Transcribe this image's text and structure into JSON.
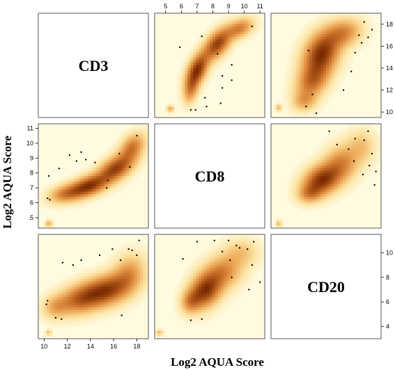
{
  "chart_data": {
    "type": "scatter",
    "subtype": "scatterplot-matrix-density",
    "xlabel": "Log2 AQUA Score",
    "ylabel": "Log2 AQUA Score",
    "variables": [
      {
        "name": "CD3",
        "range": [
          9.5,
          19
        ],
        "ticks": [
          10,
          12,
          14,
          16,
          18
        ]
      },
      {
        "name": "CD8",
        "range": [
          4.3,
          11.3
        ],
        "ticks": [
          5,
          6,
          7,
          8,
          9,
          10,
          11
        ]
      },
      {
        "name": "CD20",
        "range": [
          3,
          11.5
        ],
        "ticks": [
          4,
          6,
          8,
          10
        ]
      }
    ],
    "color_low": "#fffbe0",
    "color_high": "#7a2a00",
    "panels": [
      {
        "row": 0,
        "col": 1,
        "x_var": "CD8",
        "y_var": "CD3",
        "clusters": [
          {
            "x": 7.0,
            "y": 13.8,
            "sx": 0.45,
            "sy": 1.0,
            "rho": 0.5,
            "w": 1.0
          },
          {
            "x": 8.3,
            "y": 16.2,
            "sx": 0.55,
            "sy": 0.9,
            "rho": 0.5,
            "w": 0.9
          },
          {
            "x": 9.7,
            "y": 17.6,
            "sx": 0.55,
            "sy": 0.6,
            "rho": 0.4,
            "w": 0.55
          },
          {
            "x": 6.6,
            "y": 12.0,
            "sx": 0.3,
            "sy": 0.8,
            "rho": 0.3,
            "w": 0.45
          },
          {
            "x": 5.3,
            "y": 10.3,
            "sx": 0.15,
            "sy": 0.2,
            "rho": 0.0,
            "w": 0.35
          }
        ],
        "points": [
          [
            5.9,
            15.9
          ],
          [
            7.3,
            16.9
          ],
          [
            8.3,
            15.3
          ],
          [
            8.6,
            13.3
          ],
          [
            9.2,
            14.3
          ],
          [
            8.6,
            12.2
          ],
          [
            7.6,
            10.5
          ],
          [
            8.5,
            10.8
          ],
          [
            6.6,
            10.2
          ],
          [
            6.9,
            10.2
          ],
          [
            7.5,
            11.3
          ],
          [
            9.2,
            12.9
          ],
          [
            10.5,
            17.8
          ]
        ]
      },
      {
        "row": 0,
        "col": 2,
        "x_var": "CD20",
        "y_var": "CD3",
        "clusters": [
          {
            "x": 6.9,
            "y": 15.3,
            "sx": 0.9,
            "sy": 1.3,
            "rho": 0.3,
            "w": 1.0
          },
          {
            "x": 6.2,
            "y": 12.8,
            "sx": 0.8,
            "sy": 1.0,
            "rho": 0.3,
            "w": 0.6
          },
          {
            "x": 8.6,
            "y": 17.2,
            "sx": 0.9,
            "sy": 0.8,
            "rho": 0.2,
            "w": 0.5
          },
          {
            "x": 5.6,
            "y": 11.0,
            "sx": 0.6,
            "sy": 0.6,
            "rho": 0.1,
            "w": 0.35
          },
          {
            "x": 3.6,
            "y": 10.4,
            "sx": 0.15,
            "sy": 0.2,
            "rho": 0.0,
            "w": 0.3
          }
        ],
        "points": [
          [
            5.9,
            15.6
          ],
          [
            6.2,
            11.6
          ],
          [
            5.7,
            10.5
          ],
          [
            9.5,
            15.4
          ],
          [
            10.0,
            16.3
          ],
          [
            10.8,
            17.5
          ],
          [
            9.8,
            17.0
          ],
          [
            10.5,
            16.8
          ],
          [
            9.2,
            13.7
          ],
          [
            10.2,
            18.2
          ],
          [
            8.6,
            12.0
          ],
          [
            6.5,
            9.9
          ]
        ]
      },
      {
        "row": 1,
        "col": 0,
        "x_var": "CD3",
        "y_var": "CD8",
        "clusters": [
          {
            "x": 13.8,
            "y": 7.1,
            "sx": 1.1,
            "sy": 0.5,
            "rho": 0.5,
            "w": 1.0
          },
          {
            "x": 16.2,
            "y": 8.3,
            "sx": 1.0,
            "sy": 0.6,
            "rho": 0.5,
            "w": 0.9
          },
          {
            "x": 17.6,
            "y": 9.7,
            "sx": 0.7,
            "sy": 0.6,
            "rho": 0.4,
            "w": 0.6
          },
          {
            "x": 11.8,
            "y": 6.6,
            "sx": 0.9,
            "sy": 0.4,
            "rho": 0.3,
            "w": 0.5
          },
          {
            "x": 10.4,
            "y": 4.6,
            "sx": 0.2,
            "sy": 0.15,
            "rho": 0.0,
            "w": 0.35
          }
        ],
        "points": [
          [
            10.3,
            6.3
          ],
          [
            10.4,
            7.8
          ],
          [
            12.2,
            9.2
          ],
          [
            13.2,
            9.4
          ],
          [
            13.6,
            8.9
          ],
          [
            12.8,
            8.8
          ],
          [
            14.4,
            8.7
          ],
          [
            15.4,
            7.0
          ],
          [
            16.5,
            9.3
          ],
          [
            17.4,
            8.4
          ],
          [
            18.0,
            10.5
          ],
          [
            11.3,
            8.3
          ],
          [
            15.5,
            7.5
          ],
          [
            10.5,
            6.2
          ]
        ]
      },
      {
        "row": 1,
        "col": 2,
        "x_var": "CD20",
        "y_var": "CD8",
        "clusters": [
          {
            "x": 6.9,
            "y": 7.5,
            "sx": 0.9,
            "sy": 0.65,
            "rho": 0.25,
            "w": 1.0
          },
          {
            "x": 8.4,
            "y": 8.6,
            "sx": 0.9,
            "sy": 0.8,
            "rho": 0.2,
            "w": 0.55
          },
          {
            "x": 6.0,
            "y": 6.6,
            "sx": 0.6,
            "sy": 0.4,
            "rho": 0.1,
            "w": 0.45
          },
          {
            "x": 10.0,
            "y": 9.8,
            "sx": 0.7,
            "sy": 0.7,
            "rho": 0.0,
            "w": 0.25
          },
          {
            "x": 3.6,
            "y": 4.6,
            "sx": 0.15,
            "sy": 0.15,
            "rho": 0.0,
            "w": 0.3
          }
        ],
        "points": [
          [
            9.0,
            9.6
          ],
          [
            9.5,
            10.3
          ],
          [
            10.2,
            10.2
          ],
          [
            10.8,
            9.3
          ],
          [
            10.6,
            8.5
          ],
          [
            10.1,
            7.9
          ],
          [
            11.0,
            7.2
          ],
          [
            9.4,
            8.8
          ],
          [
            8.1,
            9.9
          ],
          [
            7.5,
            10.8
          ],
          [
            11.1,
            8.1
          ],
          [
            10.5,
            10.8
          ]
        ]
      },
      {
        "row": 2,
        "col": 0,
        "x_var": "CD3",
        "y_var": "CD20",
        "clusters": [
          {
            "x": 15.3,
            "y": 6.9,
            "sx": 1.4,
            "sy": 0.85,
            "rho": 0.35,
            "w": 1.0
          },
          {
            "x": 13.0,
            "y": 6.2,
            "sx": 1.2,
            "sy": 0.8,
            "rho": 0.3,
            "w": 0.65
          },
          {
            "x": 17.3,
            "y": 8.3,
            "sx": 0.9,
            "sy": 1.0,
            "rho": 0.2,
            "w": 0.45
          },
          {
            "x": 11.0,
            "y": 5.6,
            "sx": 0.7,
            "sy": 0.6,
            "rho": 0.1,
            "w": 0.35
          },
          {
            "x": 10.4,
            "y": 3.5,
            "sx": 0.15,
            "sy": 0.15,
            "rho": 0.0,
            "w": 0.3
          }
        ],
        "points": [
          [
            10.2,
            5.8
          ],
          [
            10.3,
            6.1
          ],
          [
            11.0,
            4.7
          ],
          [
            11.5,
            4.6
          ],
          [
            13.2,
            9.4
          ],
          [
            14.8,
            9.8
          ],
          [
            15.9,
            10.3
          ],
          [
            16.6,
            9.4
          ],
          [
            17.3,
            10.3
          ],
          [
            17.6,
            10.2
          ],
          [
            18.0,
            9.8
          ],
          [
            12.5,
            9.0
          ],
          [
            16.7,
            4.9
          ],
          [
            11.6,
            9.2
          ],
          [
            18.2,
            11.0
          ]
        ]
      },
      {
        "row": 2,
        "col": 1,
        "x_var": "CD8",
        "y_var": "CD20",
        "clusters": [
          {
            "x": 7.5,
            "y": 6.9,
            "sx": 0.65,
            "sy": 0.9,
            "rho": 0.25,
            "w": 1.0
          },
          {
            "x": 8.6,
            "y": 8.4,
            "sx": 0.8,
            "sy": 0.9,
            "rho": 0.2,
            "w": 0.55
          },
          {
            "x": 6.6,
            "y": 6.0,
            "sx": 0.4,
            "sy": 0.6,
            "rho": 0.1,
            "w": 0.45
          },
          {
            "x": 9.8,
            "y": 10.0,
            "sx": 0.7,
            "sy": 0.7,
            "rho": 0.0,
            "w": 0.25
          },
          {
            "x": 4.6,
            "y": 3.5,
            "sx": 0.15,
            "sy": 0.15,
            "rho": 0.0,
            "w": 0.3
          }
        ],
        "points": [
          [
            7.0,
            10.9
          ],
          [
            8.1,
            11.0
          ],
          [
            9.1,
            9.4
          ],
          [
            9.7,
            10.4
          ],
          [
            10.2,
            10.3
          ],
          [
            9.5,
            10.6
          ],
          [
            10.5,
            9.0
          ],
          [
            11.0,
            7.6
          ],
          [
            10.3,
            7.0
          ],
          [
            9.2,
            8.0
          ],
          [
            10.6,
            10.9
          ],
          [
            8.6,
            10.1
          ],
          [
            6.1,
            9.5
          ],
          [
            9.0,
            11.0
          ],
          [
            6.6,
            4.5
          ],
          [
            7.3,
            4.6
          ]
        ]
      }
    ],
    "labeled_axes": [
      {
        "side": "top",
        "col": 1,
        "var": "CD8"
      },
      {
        "side": "right",
        "row": 0,
        "var": "CD3"
      },
      {
        "side": "left",
        "row": 1,
        "var": "CD8"
      },
      {
        "side": "bottom",
        "col": 0,
        "var": "CD3"
      },
      {
        "side": "right",
        "row": 2,
        "var": "CD20"
      }
    ]
  }
}
